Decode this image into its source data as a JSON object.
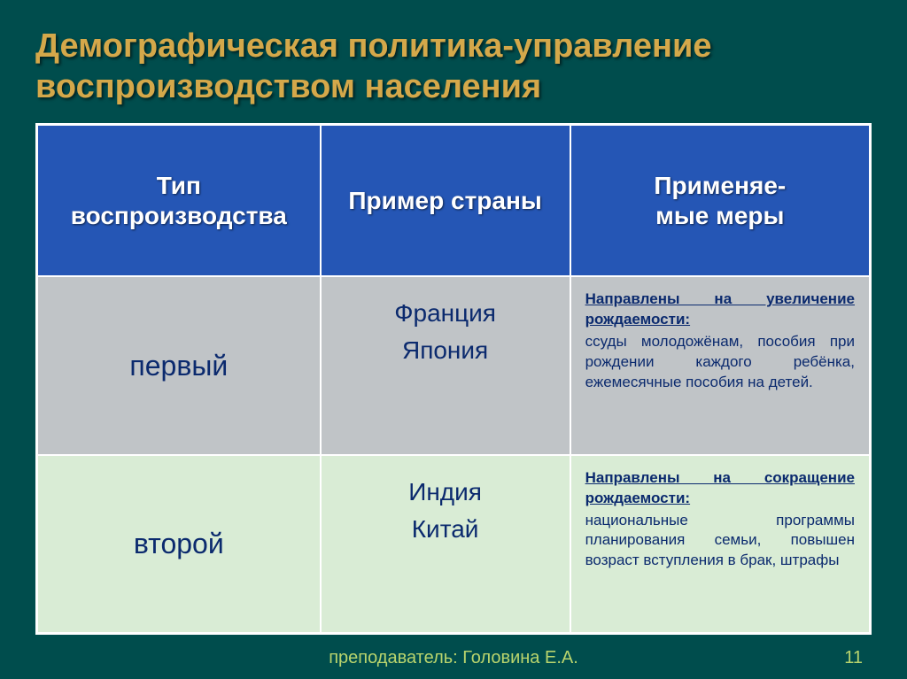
{
  "title": "Демографическая политика-управление воспроизводством населения",
  "headers": {
    "col1": "Тип воспроизводства",
    "col2": "Пример страны",
    "col3_line1": "Применяе-",
    "col3_line2": "мые меры"
  },
  "rows": [
    {
      "type": "первый",
      "country1": "Франция",
      "country2": "Япония",
      "measures_heading": "Направлены на увеличение рождаемости:",
      "measures_body": "ссуды молодожёнам, пособия при рождении каждого ребёнка, ежемесячные пособия на детей."
    },
    {
      "type": "второй",
      "country1": "Индия",
      "country2": "Китай",
      "measures_heading": "Направлены на сокращение рождаемости:",
      "measures_body": "национальные программы планирования семьи, повышен возраст вступления в брак, штрафы"
    }
  ],
  "footer": "преподаватель: Головина Е.А.",
  "page": "11",
  "colors": {
    "background": "#004d4d",
    "title": "#d4a84a",
    "header_bg": "#2556b5",
    "row1_bg": "#c0c4c7",
    "row2_bg": "#d9ecd5",
    "cell_text": "#0b2a6e",
    "footer_text": "#b9d46d",
    "border": "#ffffff"
  }
}
